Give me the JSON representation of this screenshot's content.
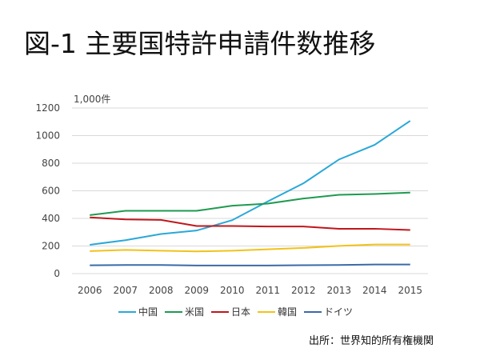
{
  "title": "図-1 主要国特許申請件数推移",
  "source": "出所：世界知的所有権機関",
  "chart_data": {
    "type": "line",
    "title": "図-1 主要国特許申請件数推移",
    "ylabel": "1,000件",
    "xlabel": "",
    "ylim": [
      0,
      1200
    ],
    "yticks": [
      0,
      200,
      400,
      600,
      800,
      1000,
      1200
    ],
    "grid": true,
    "legend_position": "bottom",
    "x": [
      "2006",
      "2007",
      "2008",
      "2009",
      "2010",
      "2011",
      "2012",
      "2013",
      "2014",
      "2015"
    ],
    "series": [
      {
        "name": "中国",
        "color": "#2aa8d8",
        "values": [
          209,
          242,
          287,
          312,
          387,
          523,
          654,
          827,
          933,
          1107
        ]
      },
      {
        "name": "米国",
        "color": "#1e9a50",
        "values": [
          424,
          455,
          455,
          455,
          492,
          507,
          544,
          571,
          577,
          587
        ]
      },
      {
        "name": "日本",
        "color": "#c0161c",
        "values": [
          407,
          393,
          389,
          345,
          345,
          341,
          341,
          325,
          325,
          316
        ]
      },
      {
        "name": "韓国",
        "color": "#f2c21a",
        "values": [
          163,
          172,
          166,
          161,
          166,
          176,
          186,
          201,
          211,
          211
        ]
      },
      {
        "name": "ドイツ",
        "color": "#3b6aa8",
        "values": [
          60,
          62,
          62,
          59,
          59,
          59,
          61,
          62,
          66,
          66
        ]
      }
    ]
  }
}
